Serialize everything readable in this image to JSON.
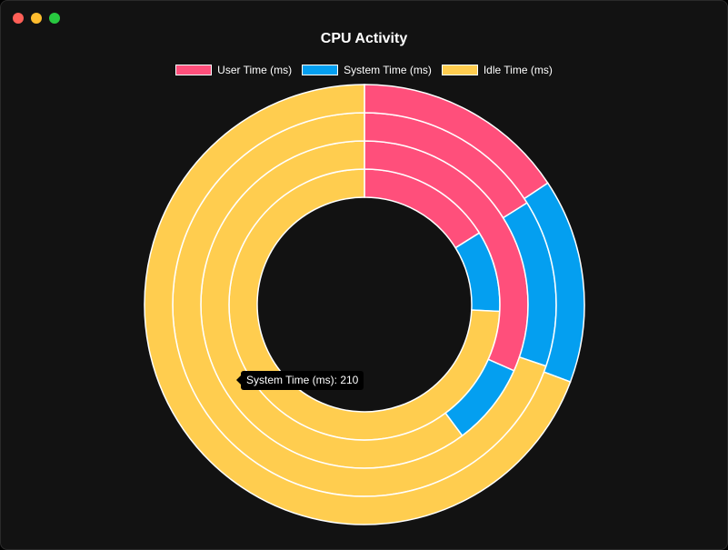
{
  "window": {
    "controls": [
      {
        "name": "close",
        "color": "#ff5f57"
      },
      {
        "name": "minimize",
        "color": "#febc2e"
      },
      {
        "name": "maximize",
        "color": "#28c840"
      }
    ]
  },
  "chart_data": {
    "type": "doughnut",
    "title": "CPU Activity",
    "legend_position": "top",
    "series": [
      {
        "name": "User Time (ms)",
        "color": "#ff4f7b"
      },
      {
        "name": "System Time (ms)",
        "color": "#049ff0"
      },
      {
        "name": "Idle Time (ms)",
        "color": "#ffcd4f"
      }
    ],
    "rings": [
      {
        "values": [
          100,
          60,
          460
        ]
      },
      {
        "values": [
          310,
          80,
          590
        ]
      },
      {
        "values": [
          240,
          210,
          1040
        ]
      },
      {
        "values": [
          240,
          230,
          1060
        ]
      }
    ],
    "tooltip": {
      "text": "System Time (ms): 210"
    }
  }
}
